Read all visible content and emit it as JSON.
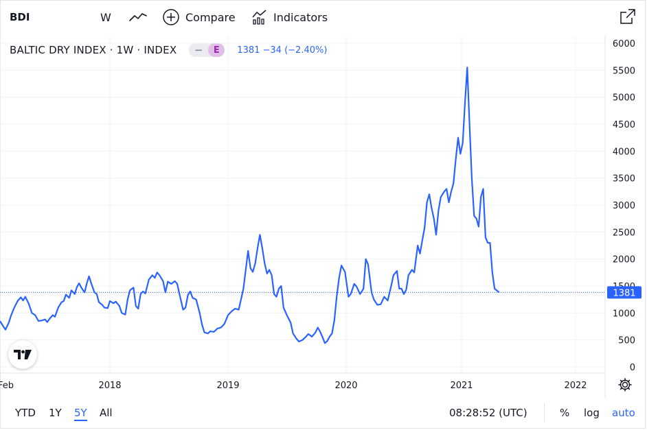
{
  "toolbar": {
    "symbol": "BDI",
    "interval": "W",
    "compare_label": "Compare",
    "indicators_label": "Indicators"
  },
  "legend": {
    "title": "BALTIC DRY INDEX · 1W · INDEX",
    "pill_dash": "−",
    "exchange_badge": "E",
    "quote": "1381 −34 (−2.40%)"
  },
  "price_label": "1381",
  "ranges": [
    "YTD",
    "1Y",
    "5Y",
    "All"
  ],
  "active_range": "5Y",
  "clock": "08:28:52 (UTC)",
  "options": {
    "percent": "%",
    "log": "log",
    "auto": "auto"
  },
  "colors": {
    "line": "#2962ff",
    "accent": "#2962ff",
    "grid": "#f0f3fa",
    "axis_text": "#131722"
  },
  "icons": [
    "line-chart-icon",
    "plus-circle-icon",
    "indicators-icon",
    "popout-icon",
    "gear-icon",
    "tradingview-logo"
  ],
  "chart_data": {
    "type": "line",
    "title": "",
    "xlabel": "",
    "ylabel": "",
    "x_ticks": [
      {
        "label": "Feb",
        "x": 2017.0
      },
      {
        "label": "2018",
        "x": 2018.0
      },
      {
        "label": "2019",
        "x": 2019.0
      },
      {
        "label": "2020",
        "x": 2020.0
      },
      {
        "label": "2021",
        "x": 2021.0
      },
      {
        "label": "2022",
        "x": 2022.0
      }
    ],
    "y_ticks": [
      0,
      500,
      1000,
      1500,
      2000,
      2500,
      3000,
      3500,
      4000,
      4500,
      5000,
      5500,
      6000
    ],
    "ylim": [
      0,
      6000
    ],
    "xlim": [
      2017.0,
      2022.25
    ],
    "grid": true,
    "last_value": 1381,
    "series": [
      {
        "values": [
          [
            2017.0,
            850
          ],
          [
            2017.03,
            750
          ],
          [
            2017.05,
            690
          ],
          [
            2017.08,
            820
          ],
          [
            2017.1,
            950
          ],
          [
            2017.13,
            1100
          ],
          [
            2017.16,
            1220
          ],
          [
            2017.19,
            1290
          ],
          [
            2017.21,
            1230
          ],
          [
            2017.23,
            1300
          ],
          [
            2017.26,
            1180
          ],
          [
            2017.29,
            1000
          ],
          [
            2017.32,
            960
          ],
          [
            2017.35,
            850
          ],
          [
            2017.38,
            860
          ],
          [
            2017.41,
            880
          ],
          [
            2017.43,
            830
          ],
          [
            2017.45,
            890
          ],
          [
            2017.48,
            960
          ],
          [
            2017.5,
            930
          ],
          [
            2017.53,
            1100
          ],
          [
            2017.56,
            1200
          ],
          [
            2017.58,
            1220
          ],
          [
            2017.6,
            1340
          ],
          [
            2017.63,
            1280
          ],
          [
            2017.65,
            1420
          ],
          [
            2017.68,
            1350
          ],
          [
            2017.7,
            1480
          ],
          [
            2017.72,
            1550
          ],
          [
            2017.74,
            1470
          ],
          [
            2017.77,
            1380
          ],
          [
            2017.79,
            1550
          ],
          [
            2017.81,
            1680
          ],
          [
            2017.83,
            1550
          ],
          [
            2017.86,
            1380
          ],
          [
            2017.88,
            1350
          ],
          [
            2017.9,
            1200
          ],
          [
            2017.93,
            1150
          ],
          [
            2017.95,
            1100
          ],
          [
            2017.98,
            1090
          ],
          [
            2018.0,
            1220
          ],
          [
            2018.03,
            1180
          ],
          [
            2018.05,
            1210
          ],
          [
            2018.08,
            1130
          ],
          [
            2018.1,
            1000
          ],
          [
            2018.13,
            970
          ],
          [
            2018.15,
            1250
          ],
          [
            2018.17,
            1420
          ],
          [
            2018.2,
            1470
          ],
          [
            2018.22,
            1130
          ],
          [
            2018.24,
            1080
          ],
          [
            2018.26,
            1350
          ],
          [
            2018.28,
            1400
          ],
          [
            2018.3,
            1360
          ],
          [
            2018.33,
            1620
          ],
          [
            2018.36,
            1700
          ],
          [
            2018.38,
            1650
          ],
          [
            2018.4,
            1750
          ],
          [
            2018.42,
            1700
          ],
          [
            2018.45,
            1590
          ],
          [
            2018.47,
            1380
          ],
          [
            2018.49,
            1580
          ],
          [
            2018.52,
            1540
          ],
          [
            2018.55,
            1590
          ],
          [
            2018.57,
            1540
          ],
          [
            2018.59,
            1340
          ],
          [
            2018.62,
            1060
          ],
          [
            2018.64,
            1100
          ],
          [
            2018.66,
            1330
          ],
          [
            2018.68,
            1400
          ],
          [
            2018.7,
            1280
          ],
          [
            2018.73,
            1250
          ],
          [
            2018.76,
            1000
          ],
          [
            2018.78,
            780
          ],
          [
            2018.8,
            640
          ],
          [
            2018.83,
            620
          ],
          [
            2018.85,
            660
          ],
          [
            2018.88,
            650
          ],
          [
            2018.91,
            710
          ],
          [
            2018.94,
            730
          ],
          [
            2018.97,
            800
          ],
          [
            2019.0,
            960
          ],
          [
            2019.03,
            1030
          ],
          [
            2019.06,
            1080
          ],
          [
            2019.09,
            1060
          ],
          [
            2019.11,
            1250
          ],
          [
            2019.13,
            1450
          ],
          [
            2019.15,
            1800
          ],
          [
            2019.17,
            2150
          ],
          [
            2019.19,
            1830
          ],
          [
            2019.21,
            1760
          ],
          [
            2019.23,
            1920
          ],
          [
            2019.25,
            2200
          ],
          [
            2019.27,
            2450
          ],
          [
            2019.29,
            2200
          ],
          [
            2019.31,
            1920
          ],
          [
            2019.33,
            1730
          ],
          [
            2019.35,
            1800
          ],
          [
            2019.37,
            1700
          ],
          [
            2019.39,
            1350
          ],
          [
            2019.41,
            1300
          ],
          [
            2019.43,
            1450
          ],
          [
            2019.45,
            1500
          ],
          [
            2019.47,
            1100
          ],
          [
            2019.5,
            950
          ],
          [
            2019.53,
            820
          ],
          [
            2019.55,
            620
          ],
          [
            2019.58,
            520
          ],
          [
            2019.6,
            470
          ],
          [
            2019.63,
            500
          ],
          [
            2019.66,
            560
          ],
          [
            2019.68,
            610
          ],
          [
            2019.71,
            560
          ],
          [
            2019.74,
            640
          ],
          [
            2019.76,
            730
          ],
          [
            2019.78,
            650
          ],
          [
            2019.8,
            550
          ],
          [
            2019.82,
            440
          ],
          [
            2019.84,
            480
          ],
          [
            2019.86,
            560
          ],
          [
            2019.88,
            620
          ],
          [
            2019.9,
            860
          ],
          [
            2019.92,
            1300
          ],
          [
            2019.94,
            1650
          ],
          [
            2019.96,
            1880
          ],
          [
            2019.99,
            1760
          ],
          [
            2020.02,
            1300
          ],
          [
            2020.04,
            1350
          ],
          [
            2020.07,
            1540
          ],
          [
            2020.09,
            1490
          ],
          [
            2020.12,
            1350
          ],
          [
            2020.15,
            1450
          ],
          [
            2020.17,
            2000
          ],
          [
            2020.19,
            1900
          ],
          [
            2020.22,
            1380
          ],
          [
            2020.24,
            1250
          ],
          [
            2020.27,
            1150
          ],
          [
            2020.3,
            1160
          ],
          [
            2020.33,
            1300
          ],
          [
            2020.36,
            1230
          ],
          [
            2020.39,
            1500
          ],
          [
            2020.41,
            1700
          ],
          [
            2020.44,
            1780
          ],
          [
            2020.46,
            1450
          ],
          [
            2020.48,
            1450
          ],
          [
            2020.5,
            1350
          ],
          [
            2020.52,
            1430
          ],
          [
            2020.54,
            1700
          ],
          [
            2020.57,
            1800
          ],
          [
            2020.59,
            1750
          ],
          [
            2020.62,
            2250
          ],
          [
            2020.64,
            2100
          ],
          [
            2020.66,
            2350
          ],
          [
            2020.68,
            2580
          ],
          [
            2020.7,
            3050
          ],
          [
            2020.72,
            3200
          ],
          [
            2020.74,
            2950
          ],
          [
            2020.76,
            2750
          ],
          [
            2020.78,
            2450
          ],
          [
            2020.8,
            2900
          ],
          [
            2020.82,
            3150
          ],
          [
            2020.85,
            3250
          ],
          [
            2020.87,
            3300
          ],
          [
            2020.89,
            3050
          ],
          [
            2020.91,
            3250
          ],
          [
            2020.93,
            3400
          ],
          [
            2020.95,
            3850
          ],
          [
            2020.97,
            4250
          ],
          [
            2020.99,
            3950
          ],
          [
            2021.01,
            4150
          ],
          [
            2021.03,
            4900
          ],
          [
            2021.05,
            5550
          ],
          [
            2021.07,
            4500
          ],
          [
            2021.09,
            3500
          ],
          [
            2021.11,
            2800
          ],
          [
            2021.13,
            2750
          ],
          [
            2021.15,
            2600
          ],
          [
            2021.17,
            3150
          ],
          [
            2021.19,
            3300
          ],
          [
            2021.21,
            2400
          ],
          [
            2021.23,
            2300
          ],
          [
            2021.25,
            2300
          ],
          [
            2021.27,
            1750
          ],
          [
            2021.29,
            1450
          ],
          [
            2021.31,
            1415
          ],
          [
            2021.33,
            1381
          ]
        ]
      }
    ]
  }
}
